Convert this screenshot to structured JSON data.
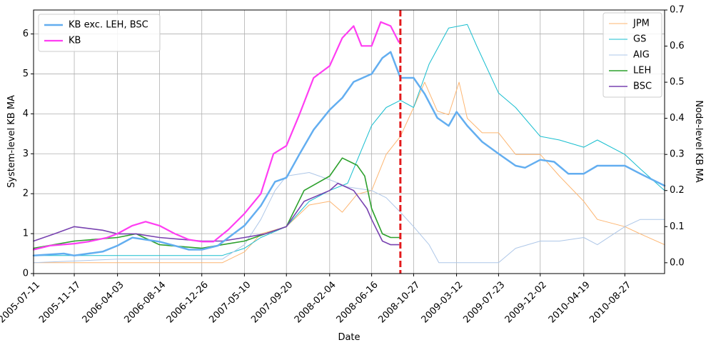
{
  "chart_data": {
    "type": "line",
    "xlabel": "Date",
    "ylabel_left": "System-level KB MA",
    "ylabel_right": "Node-level KB MA",
    "x_range": [
      "2005-07-11",
      "2010-12-31"
    ],
    "ylim_left": [
      0,
      6.6
    ],
    "ylim_right": [
      -0.03,
      0.7
    ],
    "x_ticks": [
      "2005-07-11",
      "2005-11-17",
      "2006-04-03",
      "2006-08-14",
      "2006-12-26",
      "2007-05-10",
      "2007-09-20",
      "2008-02-04",
      "2008-06-16",
      "2008-10-27",
      "2009-03-12",
      "2009-07-23",
      "2009-12-02",
      "2010-04-19",
      "2010-08-27"
    ],
    "y_ticks_left": [
      0,
      1,
      2,
      3,
      4,
      5,
      6
    ],
    "y_ticks_right": [
      0.0,
      0.1,
      0.2,
      0.3,
      0.4,
      0.5,
      0.6,
      0.7
    ],
    "grid": true,
    "vline": {
      "date": "2008-09-15",
      "color": "#e31a1c",
      "style": "dashed"
    },
    "legend_left": {
      "placement": "top-left",
      "entries": [
        "KB exc. LEH, BSC",
        "KB"
      ]
    },
    "legend_right": {
      "placement": "top-right",
      "entries": [
        "JPM",
        "GS",
        "AIG",
        "LEH",
        "BSC"
      ]
    },
    "series": [
      {
        "name": "KB exc. LEH, BSC",
        "axis": "left",
        "color": "#63aef0",
        "width": 2.5,
        "points": [
          [
            "2005-07-11",
            0.45
          ],
          [
            "2005-09-01",
            0.48
          ],
          [
            "2005-10-15",
            0.5
          ],
          [
            "2005-11-17",
            0.45
          ],
          [
            "2006-01-01",
            0.5
          ],
          [
            "2006-02-15",
            0.55
          ],
          [
            "2006-04-03",
            0.7
          ],
          [
            "2006-05-20",
            0.9
          ],
          [
            "2006-07-01",
            0.85
          ],
          [
            "2006-08-14",
            0.8
          ],
          [
            "2006-10-01",
            0.7
          ],
          [
            "2006-11-15",
            0.6
          ],
          [
            "2006-12-26",
            0.6
          ],
          [
            "2007-02-15",
            0.7
          ],
          [
            "2007-03-20",
            0.9
          ],
          [
            "2007-05-10",
            1.2
          ],
          [
            "2007-07-01",
            1.7
          ],
          [
            "2007-08-15",
            2.3
          ],
          [
            "2007-09-20",
            2.4
          ],
          [
            "2007-11-01",
            3.0
          ],
          [
            "2007-12-15",
            3.6
          ],
          [
            "2008-02-04",
            4.1
          ],
          [
            "2008-03-15",
            4.4
          ],
          [
            "2008-04-20",
            4.8
          ],
          [
            "2008-06-16",
            5.0
          ],
          [
            "2008-07-20",
            5.4
          ],
          [
            "2008-08-15",
            5.55
          ],
          [
            "2008-09-15",
            4.9
          ],
          [
            "2008-10-27",
            4.9
          ],
          [
            "2008-12-01",
            4.5
          ],
          [
            "2009-01-10",
            3.9
          ],
          [
            "2009-02-15",
            3.7
          ],
          [
            "2009-03-12",
            4.05
          ],
          [
            "2009-04-15",
            3.7
          ],
          [
            "2009-06-01",
            3.3
          ],
          [
            "2009-07-23",
            3.0
          ],
          [
            "2009-09-15",
            2.7
          ],
          [
            "2009-10-15",
            2.65
          ],
          [
            "2009-12-02",
            2.85
          ],
          [
            "2010-01-15",
            2.8
          ],
          [
            "2010-03-01",
            2.5
          ],
          [
            "2010-04-19",
            2.5
          ],
          [
            "2010-06-01",
            2.7
          ],
          [
            "2010-08-27",
            2.7
          ],
          [
            "2010-10-15",
            2.5
          ],
          [
            "2010-12-31",
            2.2
          ]
        ]
      },
      {
        "name": "KB",
        "axis": "left",
        "color": "#ff3df2",
        "width": 2.2,
        "points": [
          [
            "2005-07-11",
            0.6
          ],
          [
            "2005-09-01",
            0.7
          ],
          [
            "2005-11-17",
            0.75
          ],
          [
            "2006-01-01",
            0.8
          ],
          [
            "2006-03-01",
            0.9
          ],
          [
            "2006-04-03",
            1.0
          ],
          [
            "2006-05-20",
            1.2
          ],
          [
            "2006-07-01",
            1.3
          ],
          [
            "2006-08-14",
            1.2
          ],
          [
            "2006-10-01",
            1.0
          ],
          [
            "2006-11-15",
            0.85
          ],
          [
            "2006-12-26",
            0.8
          ],
          [
            "2007-02-01",
            0.8
          ],
          [
            "2007-03-20",
            1.1
          ],
          [
            "2007-05-10",
            1.5
          ],
          [
            "2007-07-01",
            2.0
          ],
          [
            "2007-08-10",
            3.0
          ],
          [
            "2007-09-20",
            3.2
          ],
          [
            "2007-11-01",
            4.0
          ],
          [
            "2007-12-15",
            4.9
          ],
          [
            "2008-02-04",
            5.2
          ],
          [
            "2008-03-15",
            5.9
          ],
          [
            "2008-04-20",
            6.2
          ],
          [
            "2008-05-15",
            5.7
          ],
          [
            "2008-06-16",
            5.7
          ],
          [
            "2008-07-15",
            6.3
          ],
          [
            "2008-08-15",
            6.2
          ],
          [
            "2008-09-10",
            5.8
          ]
        ]
      },
      {
        "name": "JPM",
        "axis": "right",
        "color": "#fdb672",
        "width": 1,
        "points": [
          [
            "2005-07-11",
            0.0
          ],
          [
            "2006-04-03",
            0.0
          ],
          [
            "2007-03-01",
            0.0
          ],
          [
            "2007-05-10",
            0.03
          ],
          [
            "2007-07-01",
            0.08
          ],
          [
            "2007-09-20",
            0.1
          ],
          [
            "2007-12-01",
            0.16
          ],
          [
            "2008-02-04",
            0.17
          ],
          [
            "2008-03-15",
            0.14
          ],
          [
            "2008-05-01",
            0.19
          ],
          [
            "2008-06-16",
            0.2
          ],
          [
            "2008-08-01",
            0.3
          ],
          [
            "2008-09-15",
            0.35
          ],
          [
            "2008-10-27",
            0.43
          ],
          [
            "2008-12-01",
            0.5
          ],
          [
            "2009-01-10",
            0.42
          ],
          [
            "2009-02-15",
            0.41
          ],
          [
            "2009-03-20",
            0.5
          ],
          [
            "2009-04-15",
            0.4
          ],
          [
            "2009-06-01",
            0.36
          ],
          [
            "2009-07-23",
            0.36
          ],
          [
            "2009-09-15",
            0.3
          ],
          [
            "2009-12-02",
            0.3
          ],
          [
            "2010-02-01",
            0.24
          ],
          [
            "2010-04-19",
            0.17
          ],
          [
            "2010-06-01",
            0.12
          ],
          [
            "2010-08-27",
            0.1
          ],
          [
            "2010-10-15",
            0.08
          ],
          [
            "2010-12-31",
            0.05
          ]
        ]
      },
      {
        "name": "GS",
        "axis": "right",
        "color": "#17becf",
        "width": 1,
        "points": [
          [
            "2005-07-11",
            0.02
          ],
          [
            "2006-04-03",
            0.02
          ],
          [
            "2007-03-01",
            0.02
          ],
          [
            "2007-05-10",
            0.04
          ],
          [
            "2007-07-01",
            0.07
          ],
          [
            "2007-09-20",
            0.1
          ],
          [
            "2007-12-01",
            0.17
          ],
          [
            "2008-02-04",
            0.2
          ],
          [
            "2008-04-01",
            0.22
          ],
          [
            "2008-06-16",
            0.38
          ],
          [
            "2008-08-01",
            0.43
          ],
          [
            "2008-09-15",
            0.45
          ],
          [
            "2008-10-27",
            0.43
          ],
          [
            "2008-12-15",
            0.55
          ],
          [
            "2009-02-15",
            0.65
          ],
          [
            "2009-04-15",
            0.66
          ],
          [
            "2009-05-15",
            0.6
          ],
          [
            "2009-07-23",
            0.47
          ],
          [
            "2009-09-15",
            0.43
          ],
          [
            "2009-12-02",
            0.35
          ],
          [
            "2010-02-01",
            0.34
          ],
          [
            "2010-04-19",
            0.32
          ],
          [
            "2010-06-01",
            0.34
          ],
          [
            "2010-08-27",
            0.3
          ],
          [
            "2010-10-15",
            0.26
          ],
          [
            "2010-12-31",
            0.2
          ]
        ]
      },
      {
        "name": "AIG",
        "axis": "right",
        "color": "#aec7e8",
        "width": 1,
        "points": [
          [
            "2005-07-11",
            0.0
          ],
          [
            "2006-04-03",
            0.01
          ],
          [
            "2007-03-01",
            0.01
          ],
          [
            "2007-05-10",
            0.05
          ],
          [
            "2007-07-01",
            0.12
          ],
          [
            "2007-08-15",
            0.2
          ],
          [
            "2007-09-20",
            0.24
          ],
          [
            "2007-12-01",
            0.25
          ],
          [
            "2008-02-04",
            0.23
          ],
          [
            "2008-04-01",
            0.21
          ],
          [
            "2008-06-16",
            0.2
          ],
          [
            "2008-08-01",
            0.18
          ],
          [
            "2008-09-15",
            0.14
          ],
          [
            "2008-10-27",
            0.1
          ],
          [
            "2008-12-15",
            0.05
          ],
          [
            "2009-01-15",
            0.0
          ],
          [
            "2009-07-23",
            0.0
          ],
          [
            "2009-09-15",
            0.04
          ],
          [
            "2009-12-02",
            0.06
          ],
          [
            "2010-02-01",
            0.06
          ],
          [
            "2010-04-19",
            0.07
          ],
          [
            "2010-06-01",
            0.05
          ],
          [
            "2010-08-27",
            0.1
          ],
          [
            "2010-10-15",
            0.12
          ],
          [
            "2010-12-31",
            0.12
          ]
        ]
      },
      {
        "name": "LEH",
        "axis": "right",
        "color": "#2ca02c",
        "width": 1.6,
        "points": [
          [
            "2005-07-11",
            0.04
          ],
          [
            "2005-11-17",
            0.06
          ],
          [
            "2006-04-03",
            0.07
          ],
          [
            "2006-06-01",
            0.08
          ],
          [
            "2006-08-14",
            0.05
          ],
          [
            "2006-12-26",
            0.04
          ],
          [
            "2007-03-01",
            0.05
          ],
          [
            "2007-05-10",
            0.06
          ],
          [
            "2007-07-15",
            0.08
          ],
          [
            "2007-09-20",
            0.1
          ],
          [
            "2007-11-15",
            0.2
          ],
          [
            "2008-02-04",
            0.24
          ],
          [
            "2008-03-15",
            0.29
          ],
          [
            "2008-05-01",
            0.27
          ],
          [
            "2008-05-25",
            0.24
          ],
          [
            "2008-06-16",
            0.15
          ],
          [
            "2008-07-20",
            0.08
          ],
          [
            "2008-08-15",
            0.07
          ],
          [
            "2008-09-15",
            0.07
          ]
        ]
      },
      {
        "name": "BSC",
        "axis": "right",
        "color": "#7842b0",
        "width": 1.6,
        "points": [
          [
            "2005-07-11",
            0.06
          ],
          [
            "2005-09-15",
            0.08
          ],
          [
            "2005-11-17",
            0.1
          ],
          [
            "2006-02-15",
            0.09
          ],
          [
            "2006-04-03",
            0.08
          ],
          [
            "2006-06-01",
            0.08
          ],
          [
            "2006-08-14",
            0.07
          ],
          [
            "2006-12-26",
            0.06
          ],
          [
            "2007-03-01",
            0.06
          ],
          [
            "2007-05-10",
            0.07
          ],
          [
            "2007-07-15",
            0.08
          ],
          [
            "2007-09-20",
            0.1
          ],
          [
            "2007-11-15",
            0.17
          ],
          [
            "2008-02-04",
            0.2
          ],
          [
            "2008-03-01",
            0.22
          ],
          [
            "2008-04-20",
            0.2
          ],
          [
            "2008-06-01",
            0.15
          ],
          [
            "2008-06-16",
            0.12
          ],
          [
            "2008-07-20",
            0.06
          ],
          [
            "2008-08-15",
            0.05
          ],
          [
            "2008-09-10",
            0.05
          ]
        ]
      }
    ]
  }
}
